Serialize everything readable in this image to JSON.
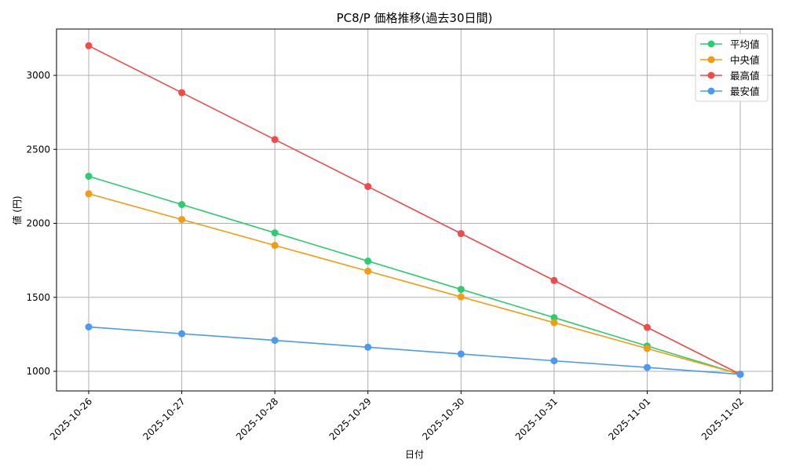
{
  "chart_data": {
    "type": "line",
    "title": "PC8/P 価格推移(過去30日間)",
    "xlabel": "日付",
    "ylabel": "値 (円)",
    "categories": [
      "2025-10-26",
      "2025-10-27",
      "2025-10-28",
      "2025-10-29",
      "2025-10-30",
      "2025-10-31",
      "2025-11-01",
      "2025-11-02"
    ],
    "yticks": [
      1000,
      1500,
      2000,
      2500,
      3000
    ],
    "ylim": [
      875,
      3310
    ],
    "grid": true,
    "legend_position": "upper right",
    "series": [
      {
        "name": "平均値",
        "color": "#2ecc71",
        "values": [
          2318,
          2127,
          1936,
          1745,
          1554,
          1363,
          1171,
          980
        ]
      },
      {
        "name": "中央値",
        "color": "#f39c12",
        "values": [
          2200,
          2026,
          1851,
          1677,
          1503,
          1329,
          1154,
          980
        ]
      },
      {
        "name": "最高値",
        "color": "#ef4b4b",
        "values": [
          3200,
          2883,
          2566,
          2249,
          1931,
          1614,
          1297,
          980
        ]
      },
      {
        "name": "最安値",
        "color": "#4a9af5",
        "values": [
          1300,
          1254,
          1209,
          1163,
          1117,
          1071,
          1026,
          980
        ]
      }
    ]
  }
}
